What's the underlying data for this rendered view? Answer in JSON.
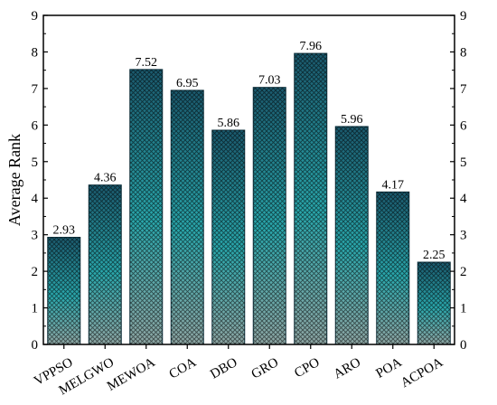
{
  "chart_data": {
    "type": "bar",
    "categories": [
      "VPPSO",
      "MELGWO",
      "MEWOA",
      "COA",
      "DBO",
      "GRO",
      "CPO",
      "ARO",
      "POA",
      "ACPOA"
    ],
    "values": [
      2.93,
      4.36,
      7.52,
      6.95,
      5.86,
      7.03,
      7.96,
      5.96,
      4.17,
      2.25
    ],
    "data_labels": [
      "2.93",
      "4.36",
      "7.52",
      "6.95",
      "5.86",
      "7.03",
      "7.96",
      "5.96",
      "4.17",
      "2.25"
    ],
    "ylabel": "Average Rank",
    "xlabel": "",
    "ylim": [
      0,
      9
    ],
    "yticks": [
      0,
      1,
      2,
      3,
      4,
      5,
      6,
      7,
      8,
      9
    ],
    "right_axis_mirror": true,
    "grid": false,
    "bar_gradient": {
      "top": "#1b5a6e",
      "middle": "#2aa8ad",
      "bottom": "#8fa8a6"
    }
  }
}
